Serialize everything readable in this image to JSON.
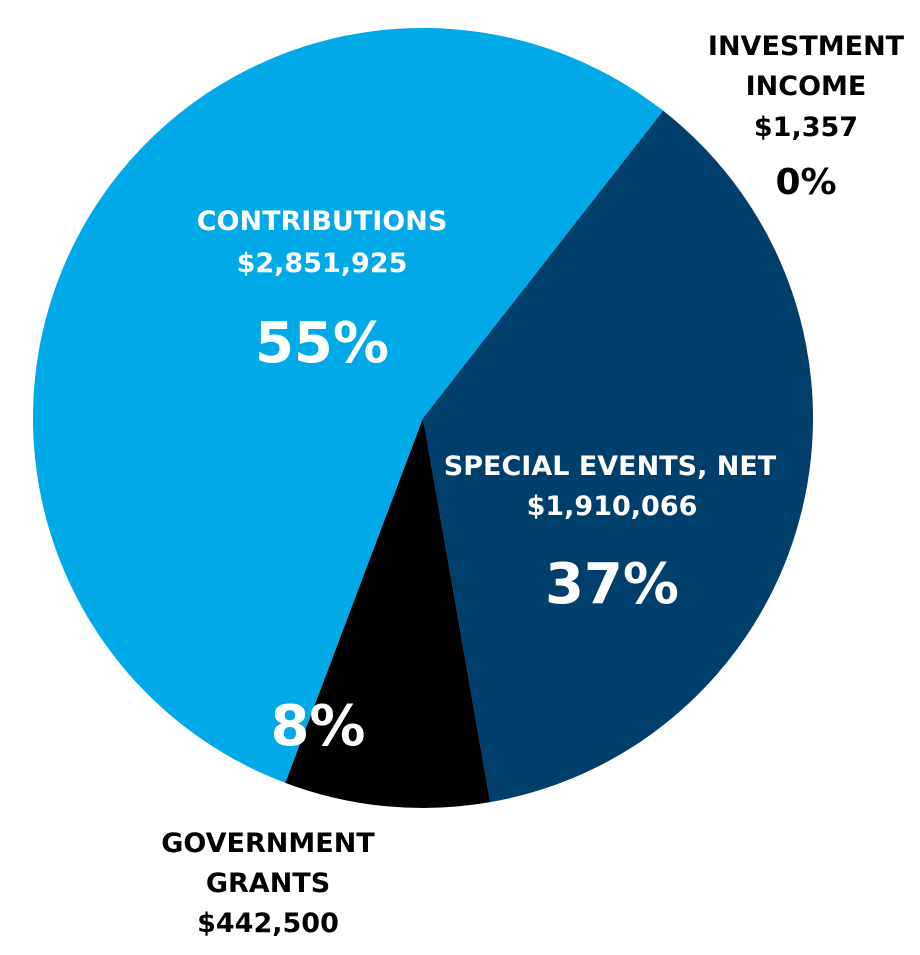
{
  "chart_data": {
    "type": "pie",
    "title": "",
    "slices": [
      {
        "id": "investment-income",
        "name_lines": [
          "INVESTMENT",
          "INCOME"
        ],
        "amount": "$1,357",
        "value": 1357,
        "percent_label": "0%",
        "color": "#00a9e8"
      },
      {
        "id": "special-events",
        "name_lines": [
          "SPECIAL EVENTS, NET"
        ],
        "amount": "$1,910,066",
        "value": 1910066,
        "percent_label": "37%",
        "color": "#003f6c"
      },
      {
        "id": "government-grants",
        "name_lines": [
          "GOVERNMENT",
          "GRANTS"
        ],
        "amount": "$442,500",
        "value": 442500,
        "percent_label": "8%",
        "color": "#000000"
      },
      {
        "id": "contributions",
        "name_lines": [
          "CONTRIBUTIONS"
        ],
        "amount": "$2,851,925",
        "value": 2851925,
        "percent_label": "55%",
        "color": "#00a9e8"
      }
    ]
  }
}
